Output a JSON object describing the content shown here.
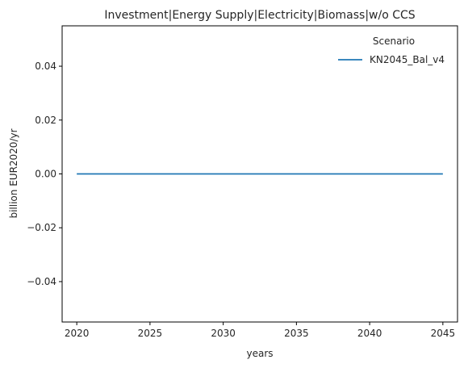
{
  "chart_data": {
    "type": "line",
    "title": "Investment|Energy Supply|Electricity|Biomass|w/o CCS",
    "xlabel": "years",
    "ylabel": "billion EUR2020/yr",
    "x": [
      2020,
      2025,
      2030,
      2035,
      2040,
      2045
    ],
    "xlim": [
      2019,
      2046
    ],
    "ylim": [
      -0.055,
      0.055
    ],
    "xticks": [
      2020,
      2025,
      2030,
      2035,
      2040,
      2045
    ],
    "yticks": [
      -0.04,
      -0.02,
      0.0,
      0.02,
      0.04
    ],
    "ytick_labels": [
      "−0.04",
      "−0.02",
      "0.00",
      "0.02",
      "0.04"
    ],
    "grid": false,
    "legend": {
      "title": "Scenario",
      "placement": "top-right"
    },
    "series": [
      {
        "name": "KN2045_Bal_v4",
        "color": "#1f77b4",
        "values": [
          0,
          0,
          0,
          0,
          0,
          0
        ]
      }
    ]
  }
}
